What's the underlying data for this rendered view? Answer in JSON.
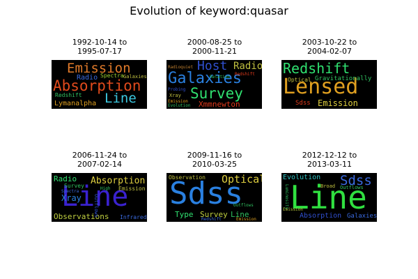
{
  "figure": {
    "title": "Evolution of keyword:quasar"
  },
  "panels": [
    {
      "title": "1992-10-14 to\n1995-07-17",
      "words": [
        {
          "text": "Emission",
          "color": "#e07a2a"
        },
        {
          "text": "Absorption",
          "color": "#e04a1c"
        },
        {
          "text": "Line",
          "color": "#3cc8e0"
        },
        {
          "text": "Radio",
          "color": "#3a6ae0"
        },
        {
          "text": "Spectra",
          "color": "#9ad030"
        },
        {
          "text": "Galaxies",
          "color": "#c0c040"
        },
        {
          "text": "Redshift",
          "color": "#30c060"
        },
        {
          "text": "Lymanalpha",
          "color": "#e0a020"
        }
      ]
    },
    {
      "title": "2000-08-25 to\n2000-11-21",
      "words": [
        {
          "text": "Host",
          "color": "#3050d0"
        },
        {
          "text": "Radio",
          "color": "#c0c040"
        },
        {
          "text": "Galaxies",
          "color": "#2a80e0"
        },
        {
          "text": "Survey",
          "color": "#30e070"
        },
        {
          "text": "Xmmnewton",
          "color": "#e03a1c"
        },
        {
          "text": "Relation",
          "color": "#30c060"
        },
        {
          "text": "Radioquiet",
          "color": "#c08030"
        },
        {
          "text": "Redshift",
          "color": "#e03a1c"
        },
        {
          "text": "Probing",
          "color": "#3050d0"
        },
        {
          "text": "Xray",
          "color": "#c0c040"
        },
        {
          "text": "Emission",
          "color": "#e0a020"
        },
        {
          "text": "Evolution",
          "color": "#30c060"
        }
      ]
    },
    {
      "title": "2003-10-22 to\n2004-02-07",
      "words": [
        {
          "text": "Redshift",
          "color": "#30e070"
        },
        {
          "text": "Lensed",
          "color": "#e0a020"
        },
        {
          "text": "Gravitationally",
          "color": "#30c060"
        },
        {
          "text": "Optical",
          "color": "#c0c040"
        },
        {
          "text": "Sdss",
          "color": "#e03a1c"
        },
        {
          "text": "Emission",
          "color": "#e0d040"
        }
      ]
    },
    {
      "title": "2006-11-24 to\n2007-02-14",
      "words": [
        {
          "text": "Line",
          "color": "#3a22d0"
        },
        {
          "text": "Radio",
          "color": "#30e070"
        },
        {
          "text": "Absorption",
          "color": "#e0d040"
        },
        {
          "text": "Survey",
          "color": "#30c060"
        },
        {
          "text": "Xray",
          "color": "#2a80e0"
        },
        {
          "text": "Emission",
          "color": "#c0c040"
        },
        {
          "text": "High",
          "color": "#30c060"
        },
        {
          "text": "Spectra",
          "color": "#3a6ae0"
        },
        {
          "text": "Observations",
          "color": "#c0d040"
        },
        {
          "text": "Infrared",
          "color": "#3a6ae0"
        },
        {
          "text": "Outflows",
          "color": "#3050d0"
        }
      ]
    },
    {
      "title": "2009-11-16 to\n2010-03-25",
      "words": [
        {
          "text": "Sdss",
          "color": "#2a80e0"
        },
        {
          "text": "Optical",
          "color": "#e0d040"
        },
        {
          "text": "Observation",
          "color": "#c0c040"
        },
        {
          "text": "Type",
          "color": "#30e070"
        },
        {
          "text": "Survey",
          "color": "#c0d040"
        },
        {
          "text": "Line",
          "color": "#30c060"
        },
        {
          "text": "Redshift",
          "color": "#3a6ae0"
        },
        {
          "text": "Emission",
          "color": "#e0a020"
        },
        {
          "text": "Outflows",
          "color": "#30c060"
        }
      ]
    },
    {
      "title": "2012-12-12 to\n2013-03-11",
      "words": [
        {
          "text": "Line",
          "color": "#30e040"
        },
        {
          "text": "Sdss",
          "color": "#3a6ae0"
        },
        {
          "text": "Evolution",
          "color": "#30c0c0"
        },
        {
          "text": "Broad",
          "color": "#c0c040"
        },
        {
          "text": "Outflows",
          "color": "#30c060"
        },
        {
          "text": "Absorption",
          "color": "#3050d0"
        },
        {
          "text": "Galaxies",
          "color": "#3a6ae0"
        },
        {
          "text": "Emission",
          "color": "#c0d040"
        },
        {
          "text": "Luminosity",
          "color": "#30c060"
        }
      ]
    }
  ]
}
